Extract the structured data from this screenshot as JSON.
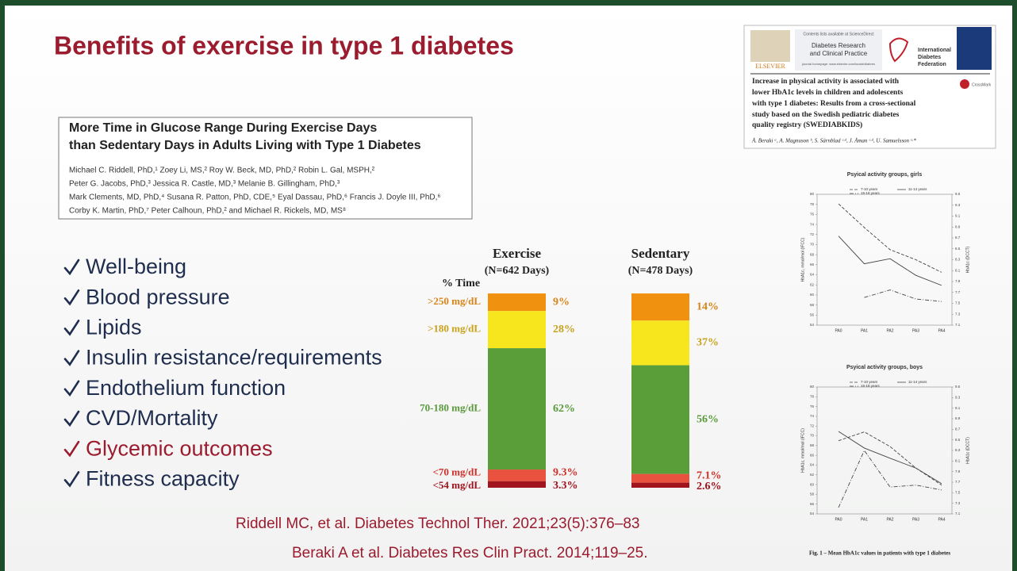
{
  "slide": {
    "title": "Benefits of exercise in type 1 diabetes",
    "bullets": [
      {
        "text": "Well-being",
        "color": "#1f2d4e"
      },
      {
        "text": "Blood pressure",
        "color": "#1f2d4e"
      },
      {
        "text": "Lipids",
        "color": "#1f2d4e"
      },
      {
        "text": "Insulin resistance/requirements",
        "color": "#1f2d4e"
      },
      {
        "text": "Endothelium function",
        "color": "#1f2d4e"
      },
      {
        "text": "CVD/Mortality",
        "color": "#1f2d4e"
      },
      {
        "text": "Glycemic outcomes",
        "color": "#9b1c2e"
      },
      {
        "text": "Fitness capacity",
        "color": "#1f2d4e"
      }
    ],
    "references": [
      "Riddell MC, et al. Diabetes Technol Ther. 2021;23(5):376–83",
      "Beraki A et al. Diabetes Res Clin Pract. 2014;119–25."
    ]
  },
  "paper": {
    "title_lines": [
      "More Time in Glucose Range During Exercise Days",
      "than Sedentary Days in Adults Living with Type 1 Diabetes"
    ],
    "author_lines": [
      "Michael C. Riddell, PhD,¹ Zoey Li, MS,² Roy W. Beck, MD, PhD,² Robin L. Gal, MSPH,²",
      "Peter G. Jacobs, PhD,³ Jessica R. Castle, MD,³ Melanie B. Gillingham, PhD,³",
      "Mark Clements, MD, PhD,⁴ Susana R. Patton, PhD, CDE,⁵ Eyal Dassau, PhD,⁶ Francis J. Doyle III, PhD,⁶",
      "Corby K. Martin, PhD,⁷ Peter Calhoun, PhD,² and Michael R. Rickels, MD, MS⁸"
    ]
  },
  "journal": {
    "publisher": "ELSEVIER",
    "contents": "Contents lists available at ScienceDirect",
    "journal_lines": [
      "Diabetes Research",
      "and Clinical Practice"
    ],
    "homepage": "journal homepage: www.elsevier.com/locate/diabres",
    "society_lines": [
      "International",
      "Diabetes",
      "Federation"
    ],
    "crossmark": "CrossMark",
    "title_lines": [
      "Increase in physical activity is associated with",
      "lower HbA1c levels in children and adolescents",
      "with type 1 diabetes: Results from a cross-sectional",
      "study based on the Swedish pediatric diabetes",
      "quality registry (SWEDIABKIDS)"
    ],
    "authors": "Å. Beraki ᵃ, A. Magnuson ᵇ, S. Särnblad ᶜ·ᵈ, J. Åman ᶜ·ᵈ, U. Samuelsson ᵉ·*",
    "figure_caption": "Fig. 1 – Mean HbA1c values in patients with type 1 diabetes"
  },
  "chart_data": [
    {
      "type": "stacked_bar",
      "axis_label": "% Time",
      "categories": [
        "Exercise",
        "Sedentary"
      ],
      "category_subtitles": [
        "(N=642 Days)",
        "(N=478 Days)"
      ],
      "series": [
        {
          "name": ">250 mg/dL",
          "color": "#f0920f",
          "label_color": "#d8841a",
          "values": [
            9,
            14
          ],
          "value_labels": [
            "9%",
            "14%"
          ]
        },
        {
          "name": ">180 mg/dL",
          "color": "#f7e51e",
          "label_color": "#c9a21c",
          "values": [
            28,
            37
          ],
          "value_labels": [
            "28%",
            "37%"
          ]
        },
        {
          "name": "70-180 mg/dL",
          "color": "#5a9e3a",
          "label_color": "#5a9a3c",
          "values": [
            62,
            56
          ],
          "value_labels": [
            "62%",
            "56%"
          ]
        },
        {
          "name": "<70 mg/dL",
          "color": "#e8523f",
          "label_color": "#d0302a",
          "values": [
            9.3,
            7.1
          ],
          "value_labels": [
            "9.3%",
            "7.1%"
          ]
        },
        {
          "name": "<54 mg/dL",
          "color": "#a0141e",
          "label_color": "#a0141e",
          "values": [
            3.3,
            2.6
          ],
          "value_labels": [
            "3.3%",
            "2.6%"
          ]
        }
      ]
    },
    {
      "type": "line",
      "title": "Psyical activity groups, girls",
      "categories": [
        "PA0",
        "PA1",
        "PA2",
        "PA3",
        "PA4"
      ],
      "ylabel": "HbA1c, mmol/mol (IFCC)",
      "y2label": "HbA1c (DCCT)",
      "ylim": [
        54,
        80
      ],
      "yticks": [
        54,
        56,
        58,
        60,
        62,
        64,
        66,
        68,
        70,
        72,
        74,
        76,
        78,
        80
      ],
      "y2lim": [
        7.1,
        9.5
      ],
      "y2ticks": [
        7.1,
        7.3,
        7.5,
        7.7,
        7.9,
        8.1,
        8.3,
        8.5,
        8.7,
        8.9,
        9.1,
        9.3,
        9.5
      ],
      "series": [
        {
          "name": "7-10 years",
          "color": "#444",
          "dash": "dashed",
          "values": [
            78.1,
            73.4,
            69,
            67,
            64.5
          ]
        },
        {
          "name": "11-14 years",
          "color": "#444",
          "dash": "solid",
          "values": [
            71.7,
            66.2,
            67.2,
            63.9,
            61.9
          ]
        },
        {
          "name": "15-18 years",
          "color": "#444",
          "dash": "dashdot",
          "values": [
            null,
            59.5,
            61,
            59.2,
            58.7
          ]
        }
      ]
    },
    {
      "type": "line",
      "title": "Psyical activity groups, boys",
      "categories": [
        "PA0",
        "PA1",
        "PA2",
        "PA3",
        "PA4"
      ],
      "ylabel": "HbA1c, mmol/mol (IFCC)",
      "y2label": "HbA1c (DCCT)",
      "ylim": [
        54,
        80
      ],
      "yticks": [
        54,
        56,
        58,
        60,
        62,
        64,
        66,
        68,
        70,
        72,
        74,
        76,
        78,
        80
      ],
      "y2lim": [
        7.1,
        9.5
      ],
      "y2ticks": [
        7.1,
        7.3,
        7.5,
        7.7,
        7.9,
        8.1,
        8.3,
        8.5,
        8.7,
        8.9,
        9.1,
        9.3,
        9.5
      ],
      "series": [
        {
          "name": "7-10 years",
          "color": "#444",
          "dash": "dashed",
          "values": [
            69,
            70.8,
            67.8,
            63.4,
            59.9
          ]
        },
        {
          "name": "11-14 years",
          "color": "#444",
          "dash": "solid",
          "values": [
            70.9,
            67.5,
            65.4,
            63.4,
            60.2
          ]
        },
        {
          "name": "15-18 years",
          "color": "#444",
          "dash": "dashdot",
          "values": [
            55.3,
            67,
            59.5,
            59.9,
            58.9
          ]
        }
      ]
    }
  ]
}
